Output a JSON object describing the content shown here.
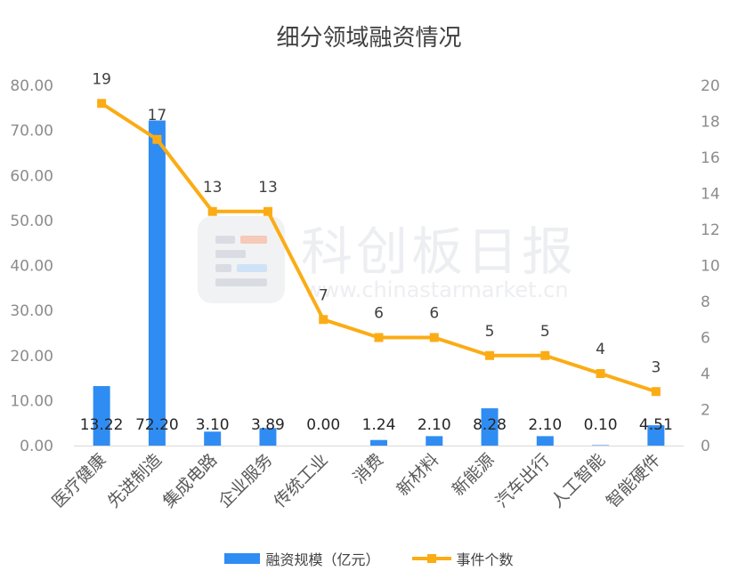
{
  "chart_data": {
    "type": "bar+line",
    "title": "细分领域融资情况",
    "categories": [
      "医疗健康",
      "先进制造",
      "集成电路",
      "企业服务",
      "传统工业",
      "消费",
      "新材料",
      "新能源",
      "汽车出行",
      "人工智能",
      "智能硬件"
    ],
    "series": [
      {
        "name": "融资规模（亿元）",
        "type": "bar",
        "axis": "left",
        "values": [
          13.22,
          72.2,
          3.1,
          3.89,
          0.0,
          1.24,
          2.1,
          8.28,
          2.1,
          0.1,
          4.51
        ],
        "labels": [
          "13.22",
          "72.20",
          "3.10",
          "3.89",
          "0.00",
          "1.24",
          "2.10",
          "8.28",
          "2.10",
          "0.10",
          "4.51"
        ],
        "color": "#2f8cf3"
      },
      {
        "name": "事件个数",
        "type": "line",
        "axis": "right",
        "values": [
          19,
          17,
          13,
          13,
          7,
          6,
          6,
          5,
          5,
          4,
          3
        ],
        "color": "#fbac15"
      }
    ],
    "y_left": {
      "min": 0,
      "max": 80,
      "ticks": [
        "0.00",
        "10.00",
        "20.00",
        "30.00",
        "40.00",
        "50.00",
        "60.00",
        "70.00",
        "80.00"
      ]
    },
    "y_right": {
      "min": 0,
      "max": 20,
      "ticks": [
        "0",
        "2",
        "4",
        "6",
        "8",
        "10",
        "12",
        "14",
        "16",
        "18",
        "20"
      ]
    },
    "grid": false,
    "legend_position": "bottom"
  },
  "watermark": {
    "brand": "科创板日报",
    "url": "www.chinastarmarket.cn"
  }
}
